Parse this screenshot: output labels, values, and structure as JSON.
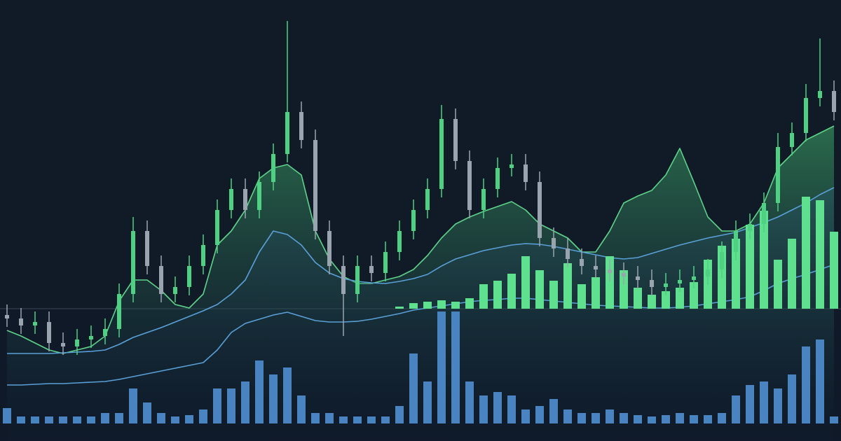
{
  "chart_data": [
    {
      "type": "line",
      "ylim": [
        0,
        630
      ],
      "series": [
        {
          "color": "#5fd38a",
          "fill": true,
          "values": [
            158,
            150,
            140,
            130,
            125,
            130,
            135,
            150,
            200,
            230,
            230,
            215,
            195,
            190,
            210,
            280,
            300,
            330,
            375,
            390,
            395,
            380,
            300,
            260,
            235,
            225,
            225,
            230,
            235,
            245,
            265,
            290,
            310,
            320,
            328,
            335,
            342,
            330,
            310,
            300,
            290,
            270,
            270,
            300,
            340,
            350,
            358,
            380,
            418,
            370,
            320,
            300,
            300,
            310,
            340,
            390,
            410,
            430,
            440,
            450
          ]
        },
        {
          "color": "#5aa0d8",
          "fill": true,
          "values": [
            125,
            125,
            125,
            125,
            126,
            127,
            128,
            130,
            138,
            148,
            155,
            162,
            170,
            178,
            186,
            195,
            210,
            230,
            270,
            300,
            295,
            280,
            255,
            240,
            232,
            228,
            226,
            225,
            228,
            232,
            238,
            250,
            260,
            266,
            272,
            276,
            280,
            282,
            281,
            278,
            274,
            270,
            266,
            262,
            260,
            262,
            268,
            274,
            280,
            285,
            290,
            294,
            298,
            305,
            312,
            320,
            330,
            340,
            352,
            362
          ]
        },
        {
          "color": "#5aa0d8",
          "fill": false,
          "values": [
            80,
            80,
            81,
            82,
            82,
            83,
            84,
            85,
            88,
            92,
            96,
            100,
            104,
            108,
            112,
            130,
            155,
            168,
            174,
            180,
            184,
            178,
            172,
            170,
            170,
            171,
            174,
            178,
            182,
            187,
            190,
            193,
            196,
            199,
            201,
            202,
            204,
            204,
            202,
            200,
            198,
            196,
            194,
            193,
            192,
            191,
            190,
            190,
            191,
            193,
            196,
            199,
            202,
            206,
            215,
            225,
            232,
            238,
            245,
            252
          ]
        }
      ]
    },
    {
      "type": "bar",
      "ylim": [
        0,
        441
      ],
      "color": "#5ee08e",
      "values": [
        null,
        null,
        null,
        null,
        null,
        null,
        null,
        null,
        null,
        null,
        null,
        null,
        null,
        null,
        null,
        null,
        null,
        null,
        null,
        null,
        null,
        null,
        null,
        null,
        null,
        null,
        null,
        null,
        3,
        8,
        10,
        12,
        10,
        15,
        35,
        40,
        50,
        75,
        55,
        40,
        65,
        35,
        45,
        75,
        55,
        30,
        20,
        25,
        30,
        38,
        70,
        90,
        100,
        120,
        140,
        70,
        100,
        160,
        155,
        110
      ]
    },
    {
      "type": "candlestick",
      "ylim": [
        0,
        630
      ],
      "up_color": "#4fd184",
      "down_color": "#9aa4ae",
      "open": [
        180,
        175,
        165,
        170,
        140,
        135,
        145,
        150,
        160,
        210,
        300,
        250,
        210,
        220,
        250,
        280,
        330,
        360,
        330,
        370,
        410,
        470,
        430,
        300,
        250,
        210,
        250,
        240,
        270,
        300,
        330,
        360,
        460,
        400,
        330,
        360,
        390,
        395,
        370,
        290,
        275,
        260,
        250,
        245,
        240,
        235,
        230,
        220,
        225,
        230,
        235,
        245,
        270,
        300,
        310,
        340,
        420,
        440,
        490,
        500
      ],
      "high": [
        195,
        190,
        185,
        185,
        155,
        160,
        165,
        175,
        225,
        320,
        315,
        265,
        235,
        265,
        295,
        345,
        375,
        375,
        385,
        425,
        600,
        485,
        445,
        315,
        265,
        265,
        265,
        285,
        315,
        345,
        375,
        480,
        475,
        415,
        375,
        405,
        410,
        410,
        385,
        305,
        290,
        275,
        265,
        260,
        255,
        250,
        245,
        240,
        245,
        250,
        260,
        285,
        315,
        325,
        355,
        440,
        455,
        510,
        575,
        515
      ],
      "low": [
        163,
        153,
        153,
        128,
        123,
        123,
        133,
        138,
        148,
        198,
        238,
        198,
        198,
        208,
        238,
        268,
        318,
        318,
        318,
        358,
        398,
        418,
        288,
        238,
        150,
        198,
        228,
        228,
        258,
        288,
        318,
        348,
        388,
        318,
        318,
        348,
        378,
        358,
        278,
        263,
        248,
        238,
        233,
        228,
        223,
        218,
        208,
        208,
        213,
        218,
        223,
        233,
        258,
        288,
        298,
        328,
        408,
        428,
        478,
        458
      ],
      "close": [
        175,
        165,
        170,
        140,
        135,
        145,
        150,
        160,
        210,
        300,
        250,
        210,
        220,
        250,
        280,
        330,
        360,
        330,
        370,
        410,
        470,
        430,
        300,
        250,
        210,
        250,
        240,
        270,
        300,
        330,
        360,
        460,
        400,
        330,
        360,
        390,
        395,
        370,
        290,
        275,
        260,
        250,
        245,
        240,
        235,
        230,
        220,
        225,
        230,
        235,
        245,
        270,
        300,
        310,
        340,
        420,
        440,
        490,
        500,
        470
      ]
    },
    {
      "type": "bar",
      "ylim": [
        0,
        605
      ],
      "color": "#4a84c0",
      "values": [
        22,
        10,
        10,
        10,
        10,
        10,
        10,
        15,
        15,
        50,
        30,
        15,
        10,
        12,
        20,
        50,
        50,
        60,
        90,
        70,
        80,
        40,
        15,
        15,
        10,
        10,
        10,
        10,
        25,
        100,
        60,
        160,
        160,
        60,
        40,
        45,
        40,
        20,
        25,
        35,
        20,
        15,
        15,
        20,
        15,
        12,
        10,
        12,
        15,
        12,
        12,
        15,
        40,
        55,
        60,
        50,
        70,
        110,
        120,
        10
      ]
    }
  ]
}
